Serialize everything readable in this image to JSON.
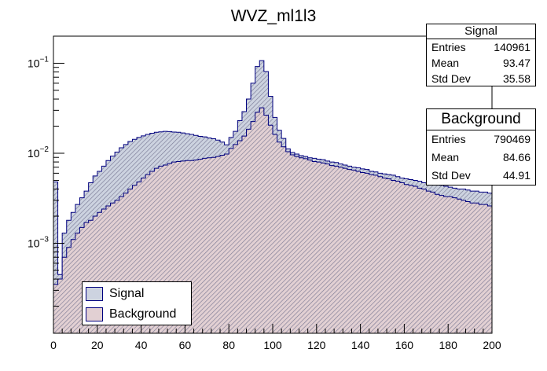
{
  "chart_data": {
    "type": "area",
    "title": "WVZ_ml1l3",
    "xlabel": "",
    "ylabel": "",
    "xlim": [
      0,
      200
    ],
    "ylim": [
      0.0001,
      0.2
    ],
    "yscale": "log",
    "bin_width": 2,
    "x_ticks": [
      "0",
      "20",
      "40",
      "60",
      "80",
      "100",
      "120",
      "140",
      "160",
      "180",
      "200"
    ],
    "y_ticks": [
      {
        "mantissa": "10",
        "exp": "−1",
        "value": 0.1
      },
      {
        "mantissa": "10",
        "exp": "−2",
        "value": 0.01
      },
      {
        "mantissa": "10",
        "exp": "−3",
        "value": 0.001
      }
    ],
    "series": [
      {
        "name": "Signal",
        "fill": "#cdd3e0",
        "line": "#00007f",
        "values": [
          0.0048,
          0.00045,
          0.0013,
          0.0018,
          0.0022,
          0.0027,
          0.0032,
          0.0038,
          0.0047,
          0.0056,
          0.0063,
          0.0072,
          0.0083,
          0.0093,
          0.0103,
          0.0115,
          0.0125,
          0.0135,
          0.0143,
          0.015,
          0.0156,
          0.0162,
          0.0167,
          0.0171,
          0.0173,
          0.0175,
          0.0174,
          0.0172,
          0.0171,
          0.0168,
          0.0165,
          0.0162,
          0.0158,
          0.0154,
          0.0152,
          0.0148,
          0.0145,
          0.014,
          0.0133,
          0.0124,
          0.015,
          0.0175,
          0.023,
          0.029,
          0.04,
          0.06,
          0.092,
          0.107,
          0.081,
          0.043,
          0.025,
          0.018,
          0.0146,
          0.0112,
          0.0102,
          0.0098,
          0.0094,
          0.0092,
          0.0089,
          0.0088,
          0.0086,
          0.0085,
          0.0082,
          0.008,
          0.0079,
          0.0076,
          0.0074,
          0.0072,
          0.007,
          0.0069,
          0.0067,
          0.0066,
          0.0063,
          0.0062,
          0.006,
          0.0059,
          0.0058,
          0.0057,
          0.0055,
          0.0053,
          0.0052,
          0.0051,
          0.005,
          0.0049,
          0.0047,
          0.0046,
          0.0045,
          0.0045,
          0.0044,
          0.0043,
          0.0042,
          0.0041,
          0.004,
          0.004,
          0.0039,
          0.0038,
          0.0038,
          0.0037,
          0.0037,
          0.0036
        ],
        "stats": {
          "Entries": "140961",
          "Mean": "93.47",
          "Std Dev": "35.58"
        }
      },
      {
        "name": "Background",
        "fill": "#e2d0d3",
        "line": "#00007f",
        "values": [
          0.00035,
          0.0004,
          0.0007,
          0.0009,
          0.0011,
          0.0013,
          0.0015,
          0.0017,
          0.0018,
          0.002,
          0.0022,
          0.0024,
          0.0026,
          0.0028,
          0.003,
          0.0033,
          0.0036,
          0.004,
          0.0044,
          0.0048,
          0.0053,
          0.0058,
          0.0063,
          0.0068,
          0.0072,
          0.0074,
          0.0077,
          0.008,
          0.0081,
          0.0082,
          0.0083,
          0.0083,
          0.0084,
          0.0086,
          0.0088,
          0.0089,
          0.009,
          0.0092,
          0.0095,
          0.0098,
          0.0113,
          0.0125,
          0.0138,
          0.0155,
          0.0185,
          0.0225,
          0.0285,
          0.032,
          0.0265,
          0.0205,
          0.0162,
          0.0133,
          0.0118,
          0.0104,
          0.0096,
          0.0092,
          0.0089,
          0.0087,
          0.0084,
          0.0081,
          0.008,
          0.0078,
          0.0076,
          0.0073,
          0.0072,
          0.007,
          0.0068,
          0.0066,
          0.0065,
          0.0063,
          0.0061,
          0.006,
          0.0058,
          0.0057,
          0.0055,
          0.0053,
          0.0052,
          0.005,
          0.0049,
          0.0047,
          0.0045,
          0.0044,
          0.0043,
          0.0041,
          0.004,
          0.0038,
          0.0037,
          0.0035,
          0.0034,
          0.0033,
          0.0033,
          0.0032,
          0.0031,
          0.003,
          0.0029,
          0.0028,
          0.0028,
          0.0027,
          0.0027,
          0.0026
        ],
        "stats": {
          "Entries": "790469",
          "Mean": "84.66",
          "Std Dev": "44.91"
        }
      }
    ],
    "legend": {
      "position": "bottom-left",
      "entries": [
        "Signal",
        "Background"
      ]
    }
  },
  "stat_labels": {
    "entries": "Entries",
    "mean": "Mean",
    "std_dev": "Std Dev"
  }
}
